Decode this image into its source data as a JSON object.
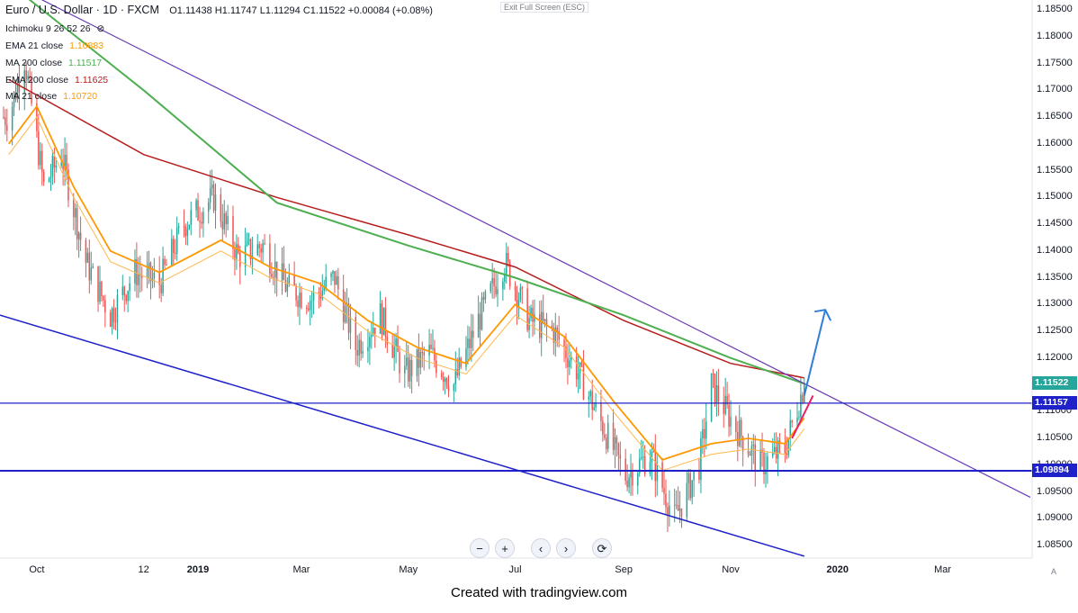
{
  "header": {
    "symbol": "Euro / U.S. Dollar · 1D · FXCM",
    "ohlc": "O1.11438 H1.11747 L1.11294 C1.11522 +0.00084 (+0.08%)"
  },
  "indicators": [
    {
      "label": "Ichimoku 9 26 52 26",
      "value": "",
      "color": "#787b86"
    },
    {
      "label": "EMA 21 close",
      "value": "1.10883",
      "color": "#ff9800"
    },
    {
      "label": "MA 200 close",
      "value": "1.11517",
      "color": "#4caf50"
    },
    {
      "label": "EMA 200 close",
      "value": "1.11625",
      "color": "#b71c1c"
    },
    {
      "label": "MA 21 close",
      "value": "1.10720",
      "color": "#ff9800"
    }
  ],
  "exit_fullscreen": "Exit Full Screen (ESC)",
  "price_tags": [
    {
      "value": "1.11522",
      "color": "#26a69a"
    },
    {
      "value": "1.11157",
      "color": "#1e22c8"
    },
    {
      "value": "1.09894",
      "color": "#1e22c8"
    }
  ],
  "footer": "Created with tradingview.com",
  "auto_label": "A",
  "nav_buttons": [
    "−",
    "+",
    "‹",
    "›",
    "⟳"
  ],
  "chart_data": {
    "type": "candlestick",
    "y_axis_ticks": [
      "1.18500",
      "1.18000",
      "1.17500",
      "1.17000",
      "1.16500",
      "1.16000",
      "1.15500",
      "1.15000",
      "1.14500",
      "1.14000",
      "1.13500",
      "1.13000",
      "1.12500",
      "1.12000",
      "1.11500",
      "1.11000",
      "1.10500",
      "1.10000",
      "1.09500",
      "1.09000",
      "1.08500"
    ],
    "x_axis_ticks": [
      "Oct",
      "12",
      "2019",
      "Mar",
      "May",
      "Jul",
      "Sep",
      "Nov",
      "2020",
      "Mar"
    ],
    "ylim": [
      1.0825,
      1.1875
    ],
    "colors": {
      "up": "#26a69a",
      "down": "#ef5350",
      "ema21": "#ff9800",
      "ma200": "#4caf50",
      "ema200": "#b71c1c",
      "trend": "#673ab7",
      "support": "#1e22c8"
    },
    "close_path": [
      [
        "2018-09-15",
        1.165
      ],
      [
        "2018-09-24",
        1.176
      ],
      [
        "2018-10-05",
        1.152
      ],
      [
        "2018-10-15",
        1.158
      ],
      [
        "2018-10-29",
        1.138
      ],
      [
        "2018-11-12",
        1.128
      ],
      [
        "2018-11-26",
        1.136
      ],
      [
        "2018-12-10",
        1.134
      ],
      [
        "2018-12-24",
        1.145
      ],
      [
        "2019-01-10",
        1.15
      ],
      [
        "2019-01-24",
        1.139
      ],
      [
        "2019-02-07",
        1.141
      ],
      [
        "2019-02-21",
        1.133
      ],
      [
        "2019-03-07",
        1.131
      ],
      [
        "2019-03-20",
        1.135
      ],
      [
        "2019-04-01",
        1.122
      ],
      [
        "2019-04-15",
        1.128
      ],
      [
        "2019-04-29",
        1.117
      ],
      [
        "2019-05-13",
        1.121
      ],
      [
        "2019-05-27",
        1.115
      ],
      [
        "2019-06-10",
        1.127
      ],
      [
        "2019-06-25",
        1.138
      ],
      [
        "2019-07-09",
        1.127
      ],
      [
        "2019-07-23",
        1.125
      ],
      [
        "2019-08-05",
        1.118
      ],
      [
        "2019-08-19",
        1.108
      ],
      [
        "2019-09-02",
        1.098
      ],
      [
        "2019-09-16",
        1.102
      ],
      [
        "2019-09-30",
        1.09
      ],
      [
        "2019-10-14",
        1.1
      ],
      [
        "2019-10-21",
        1.115
      ],
      [
        "2019-11-04",
        1.107
      ],
      [
        "2019-11-18",
        1.1
      ],
      [
        "2019-12-02",
        1.103
      ],
      [
        "2019-12-13",
        1.1152
      ]
    ],
    "ema21_path": [
      [
        "2018-09-15",
        1.16
      ],
      [
        "2018-10-01",
        1.167
      ],
      [
        "2018-10-22",
        1.152
      ],
      [
        "2018-11-12",
        1.14
      ],
      [
        "2018-12-10",
        1.136
      ],
      [
        "2019-01-14",
        1.142
      ],
      [
        "2019-02-11",
        1.137
      ],
      [
        "2019-03-11",
        1.134
      ],
      [
        "2019-04-08",
        1.127
      ],
      [
        "2019-05-06",
        1.122
      ],
      [
        "2019-06-03",
        1.119
      ],
      [
        "2019-07-01",
        1.13
      ],
      [
        "2019-07-29",
        1.124
      ],
      [
        "2019-08-26",
        1.112
      ],
      [
        "2019-09-23",
        1.101
      ],
      [
        "2019-10-21",
        1.104
      ],
      [
        "2019-11-11",
        1.105
      ],
      [
        "2019-12-02",
        1.104
      ],
      [
        "2019-12-13",
        1.1088
      ]
    ],
    "ma200_path": [
      [
        "2018-09-15",
        1.19
      ],
      [
        "2018-12-01",
        1.17
      ],
      [
        "2019-02-15",
        1.149
      ],
      [
        "2019-05-01",
        1.141
      ],
      [
        "2019-07-01",
        1.135
      ],
      [
        "2019-09-01",
        1.128
      ],
      [
        "2019-11-01",
        1.12
      ],
      [
        "2019-12-13",
        1.1152
      ]
    ],
    "ema200_path": [
      [
        "2018-09-15",
        1.172
      ],
      [
        "2018-12-01",
        1.158
      ],
      [
        "2019-02-15",
        1.15
      ],
      [
        "2019-05-01",
        1.143
      ],
      [
        "2019-07-01",
        1.137
      ],
      [
        "2019-09-01",
        1.127
      ],
      [
        "2019-11-01",
        1.119
      ],
      [
        "2019-12-13",
        1.1163
      ]
    ],
    "trendline_upper": [
      [
        "2018-09-15",
        1.19
      ],
      [
        "2020-04-20",
        1.094
      ]
    ],
    "trendline_lower": [
      [
        "2018-09-10",
        1.128
      ],
      [
        "2019-12-13",
        1.083
      ]
    ],
    "support_levels": [
      1.11157,
      1.09894
    ],
    "projection_arrow": [
      [
        "2019-12-13",
        1.113
      ],
      [
        "2019-12-25",
        1.129
      ]
    ],
    "pink_trend": [
      [
        "2019-12-06",
        1.105
      ],
      [
        "2019-12-18",
        1.113
      ]
    ],
    "last_close": 1.11522
  }
}
